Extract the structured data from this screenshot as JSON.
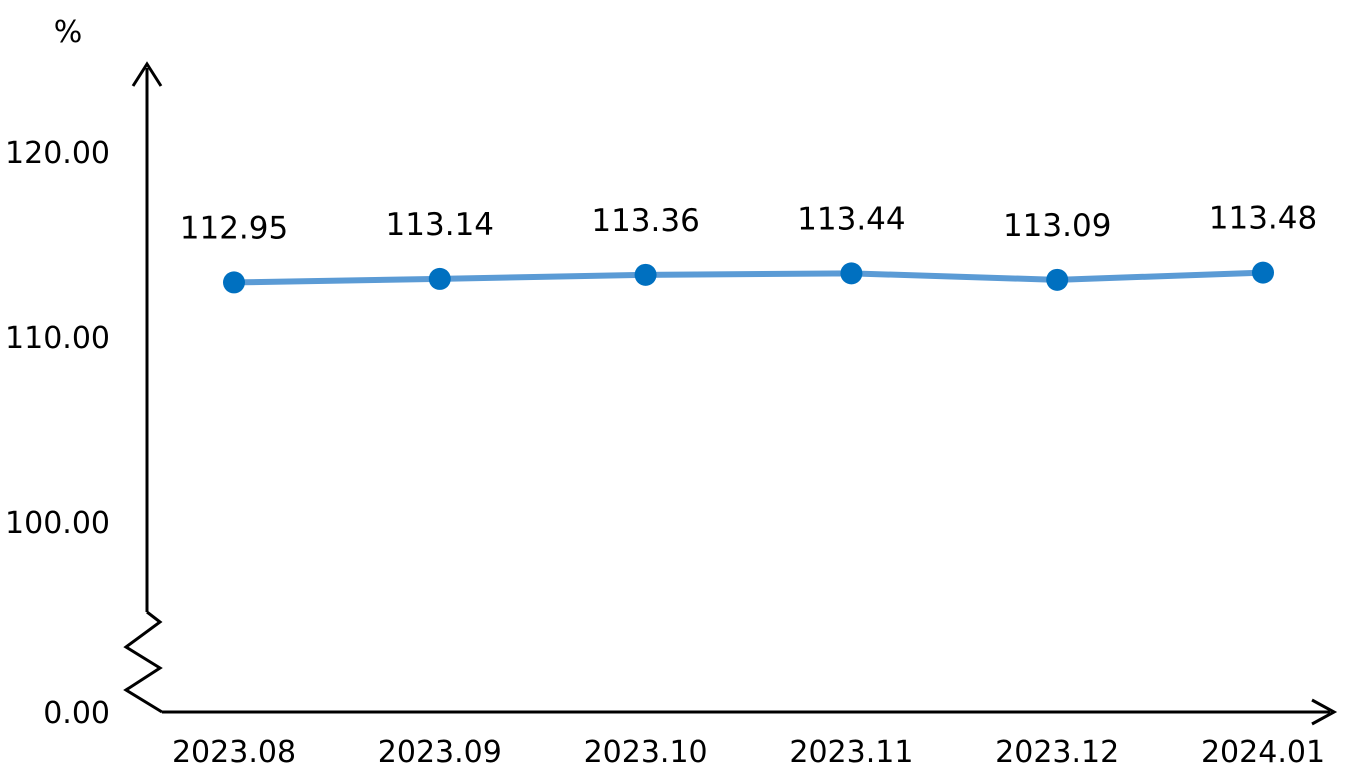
{
  "chart_data": {
    "type": "line",
    "title": "",
    "xlabel": "",
    "ylabel": "%",
    "categories": [
      "2023.08",
      "2023.09",
      "2023.10",
      "2023.11",
      "2023.12",
      "2024.01"
    ],
    "series": [
      {
        "values": [
          112.95,
          113.14,
          113.36,
          113.44,
          113.09,
          113.48
        ],
        "data_labels": [
          "112.95",
          "113.14",
          "113.36",
          "113.44",
          "113.09",
          "113.48"
        ]
      }
    ],
    "y_ticks": [
      {
        "value": 0,
        "label": "0.00"
      },
      {
        "value": 100,
        "label": "100.00"
      },
      {
        "value": 110,
        "label": "110.00"
      },
      {
        "value": 120,
        "label": "120.00"
      }
    ],
    "y_axis_break": true,
    "ylim_upper": [
      100,
      120
    ],
    "grid": false,
    "legend": "none",
    "line_color": "#5B9BD5",
    "marker_color": "#0070C0",
    "axis_color": "#000000"
  }
}
